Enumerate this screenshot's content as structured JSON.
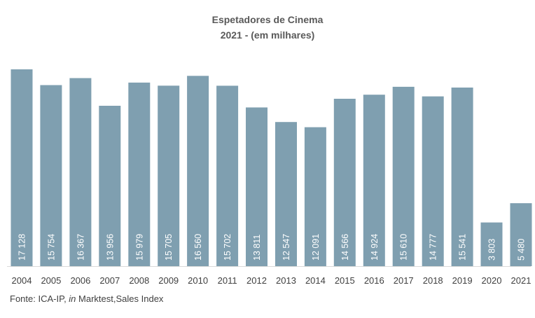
{
  "chart_data": {
    "type": "bar",
    "title": "Espetadores de Cinema",
    "subtitle": "2021 - (em milhares)",
    "categories": [
      "2004",
      "2005",
      "2006",
      "2007",
      "2008",
      "2009",
      "2010",
      "2011",
      "2012",
      "2013",
      "2014",
      "2015",
      "2016",
      "2017",
      "2018",
      "2019",
      "2020",
      "2021"
    ],
    "values": [
      17128,
      15754,
      16367,
      13956,
      15979,
      15705,
      16560,
      15702,
      13811,
      12547,
      12091,
      14566,
      14924,
      15610,
      14777,
      15541,
      3803,
      5480
    ],
    "data_labels": [
      "17 128",
      "15 754",
      "16 367",
      "13 956",
      "15 979",
      "15 705",
      "16 560",
      "15 702",
      "13 811",
      "12 547",
      "12 091",
      "14 566",
      "14 924",
      "15 610",
      "14 777",
      "15 541",
      "3 803",
      "5 480"
    ],
    "xlabel": "",
    "ylabel": "",
    "ylim": [
      0,
      17128
    ],
    "grid": false,
    "legend": "none",
    "colors": {
      "bar": "#7f9fb0",
      "label": "#ffffff",
      "axis": "#d9d9d9",
      "tick": "#404040",
      "title": "#595959"
    }
  },
  "source": {
    "prefix": "Fonte: ICA-IP, ",
    "italic": "in",
    "suffix": " Marktest,Sales Index"
  }
}
